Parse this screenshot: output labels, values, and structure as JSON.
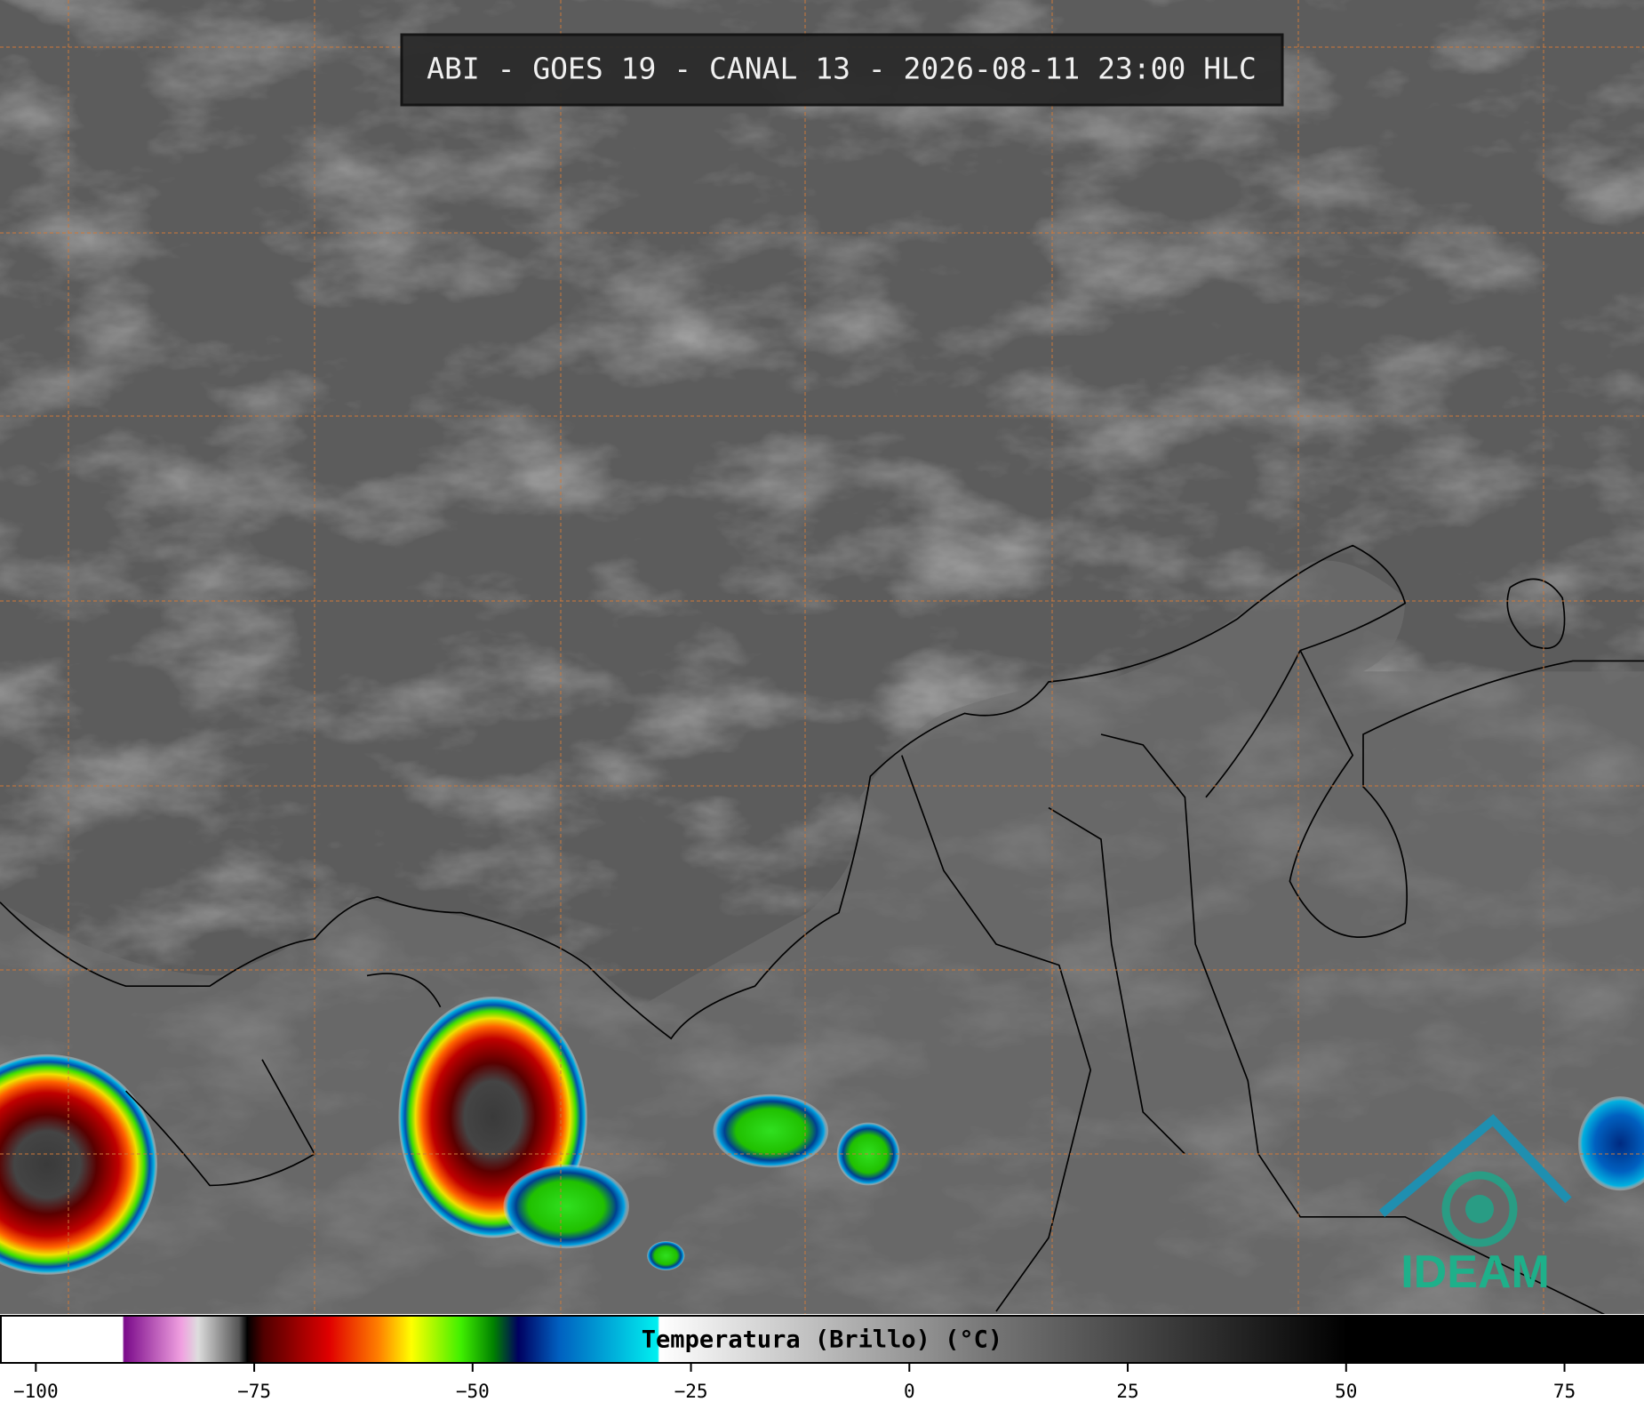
{
  "title": "ABI - GOES 19 - CANAL 13 - 2026-08-11 23:00 HLC",
  "colorbar": {
    "label": "Temperatura (Brillo) (°C)",
    "range": [
      -104,
      84
    ],
    "ticks": [
      {
        "value": -100,
        "label": "−100"
      },
      {
        "value": -75,
        "label": "−75"
      },
      {
        "value": -50,
        "label": "−50"
      },
      {
        "value": -25,
        "label": "−25"
      },
      0,
      25,
      50,
      75
    ]
  },
  "logo": "IDEAM"
}
